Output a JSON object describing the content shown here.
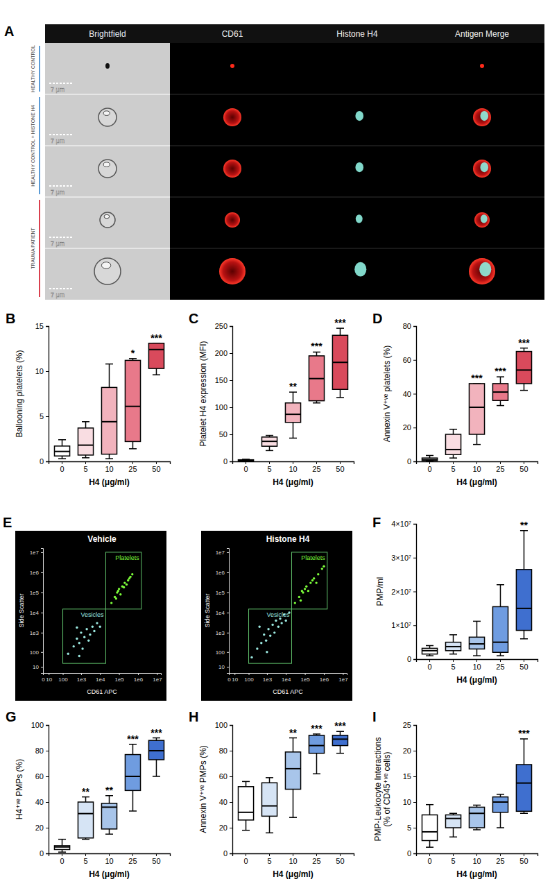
{
  "image_panel": {
    "label": "A",
    "columns": [
      "Brightfield",
      "CD61",
      "Histone H4",
      "Antigen Merge"
    ],
    "groups": [
      {
        "label": "HEALTHY CONTROL",
        "color": "#5b9bd5",
        "scale_bars": [
          "7 μm"
        ]
      },
      {
        "label": "HEALTHY CONTROL + HISTONE H4",
        "color": "#5b9bd5",
        "scale_bars": [
          "7 μm",
          "7 μm"
        ]
      },
      {
        "label": "TRAUMA PATIENT",
        "color": "#d9404e",
        "scale_bars": [
          "7 μm",
          "7 μm"
        ]
      }
    ]
  },
  "chart_data": [
    {
      "type": "box",
      "panel": "B",
      "x_label": "H4 (μg/ml)",
      "y_label": "Ballooning platelets (%)",
      "categories": [
        0,
        5,
        10,
        25,
        50
      ],
      "ylim": [
        0,
        15
      ],
      "yticks": [
        0,
        5,
        10,
        15
      ],
      "min": [
        0.3,
        0.4,
        0.3,
        1.4,
        9.6
      ],
      "q1": [
        0.6,
        0.7,
        0.8,
        2.2,
        10.3
      ],
      "median": [
        1.1,
        1.8,
        4.4,
        6.1,
        12.4
      ],
      "q3": [
        1.7,
        3.7,
        8.2,
        11.2,
        13.1
      ],
      "max": [
        2.4,
        4.4,
        10.8,
        11.4,
        13.1
      ],
      "significance": [
        null,
        null,
        null,
        "*",
        "***"
      ],
      "colors": [
        "#ffffff",
        "#f9dde2",
        "#f2b3bd",
        "#e8798a",
        "#d94a5c"
      ]
    },
    {
      "type": "box",
      "panel": "C",
      "x_label": "H4 (μg/ml)",
      "y_label": "Platelet H4 expression (MFI)",
      "categories": [
        0,
        5,
        10,
        25,
        50
      ],
      "ylim": [
        0,
        250
      ],
      "yticks": [
        0,
        50,
        100,
        150,
        200,
        250
      ],
      "min": [
        0,
        20,
        43,
        108,
        118
      ],
      "q1": [
        1,
        28,
        72,
        112,
        133
      ],
      "median": [
        2,
        37,
        87,
        153,
        183
      ],
      "q3": [
        3,
        45,
        108,
        195,
        233
      ],
      "max": [
        4,
        48,
        128,
        202,
        246
      ],
      "significance": [
        null,
        null,
        "**",
        "***",
        "***"
      ],
      "colors": [
        "#ffffff",
        "#f9dde2",
        "#f2b3bd",
        "#e8798a",
        "#d94a5c"
      ]
    },
    {
      "type": "box",
      "panel": "D",
      "x_label": "H4 (μg/ml)",
      "y_label": "Annexin V⁺ᵛᵉ platelets (%)",
      "categories": [
        0,
        5,
        10,
        25,
        50
      ],
      "ylim": [
        0,
        80
      ],
      "yticks": [
        0,
        20,
        40,
        60,
        80
      ],
      "min": [
        0,
        2,
        10,
        33,
        42
      ],
      "q1": [
        0.5,
        4,
        16,
        36,
        46
      ],
      "median": [
        1,
        7,
        32,
        41,
        54
      ],
      "q3": [
        2,
        16,
        46,
        46,
        65
      ],
      "max": [
        3.5,
        19,
        46,
        50,
        67
      ],
      "significance": [
        null,
        null,
        "***",
        "***",
        "***"
      ],
      "colors": [
        "#ffffff",
        "#f9dde2",
        "#f2b3bd",
        "#e8798a",
        "#d94a5c"
      ]
    },
    {
      "type": "scatter",
      "panel": "E",
      "title": "Vehicle",
      "x_label": "CD61 APC",
      "y_label": "Side Scatter",
      "log": true,
      "xlim": [
        0,
        16000000
      ],
      "ylim": [
        0,
        16000000
      ],
      "xticks": [
        0,
        10,
        100,
        {
          "value": 1000,
          "label": "1e3"
        },
        {
          "value": 10000,
          "label": "1e4"
        },
        {
          "value": 100000,
          "label": "1e5"
        },
        {
          "value": 1000000,
          "label": "1e6"
        },
        {
          "value": 10000000,
          "label": "1e7"
        }
      ],
      "yticks": [
        10,
        100,
        {
          "value": 1000,
          "label": "1e3"
        },
        {
          "value": 10000,
          "label": "1e4"
        },
        {
          "value": 100000,
          "label": "1e5"
        },
        {
          "value": 1000000,
          "label": "1e6"
        },
        {
          "value": 10000000,
          "label": "1e7"
        }
      ],
      "series": [
        {
          "name": "Platelets",
          "color": "#7cfc3a",
          "gate_x": [
            20000,
            1500000
          ],
          "gate_y": [
            15000,
            10000000
          ],
          "x": [
            40000,
            60000,
            80000,
            100000,
            120000,
            150000,
            200000,
            250000,
            300000,
            400000,
            500000,
            70000,
            90000,
            180000,
            350000
          ],
          "y": [
            30000,
            60000,
            100000,
            150000,
            80000,
            200000,
            300000,
            250000,
            400000,
            600000,
            800000,
            50000,
            120000,
            180000,
            500000
          ]
        },
        {
          "name": "Vesicles",
          "color": "#9be8e0",
          "gate_x": [
            100,
            20000
          ],
          "gate_y": [
            20,
            15000
          ],
          "x": [
            200,
            400,
            600,
            800,
            1000,
            1500,
            2000,
            3000,
            4000,
            5000,
            7000,
            10000,
            1200,
            2500,
            800,
            600
          ],
          "y": [
            80,
            200,
            500,
            300,
            1000,
            600,
            1500,
            800,
            2000,
            1200,
            3000,
            2000,
            150,
            400,
            60,
            1800
          ]
        }
      ]
    },
    {
      "type": "scatter",
      "title": "Histone H4",
      "x_label": "CD61 APC",
      "y_label": "Side Scatter",
      "log": true,
      "xlim": [
        0,
        16000000
      ],
      "ylim": [
        0,
        16000000
      ],
      "xticks": [
        0,
        10,
        100,
        {
          "value": 1000,
          "label": "1e3"
        },
        {
          "value": 10000,
          "label": "1e4"
        },
        {
          "value": 100000,
          "label": "1e5"
        },
        {
          "value": 1000000,
          "label": "1e6"
        },
        {
          "value": 10000000,
          "label": "1e7"
        }
      ],
      "yticks": [
        10,
        100,
        {
          "value": 1000,
          "label": "1e3"
        },
        {
          "value": 10000,
          "label": "1e4"
        },
        {
          "value": 100000,
          "label": "1e5"
        },
        {
          "value": 1000000,
          "label": "1e6"
        },
        {
          "value": 10000000,
          "label": "1e7"
        }
      ],
      "series": [
        {
          "name": "Platelets",
          "color": "#7cfc3a",
          "gate_x": [
            20000,
            1500000
          ],
          "gate_y": [
            15000,
            10000000
          ],
          "x": [
            30000,
            50000,
            60000,
            70000,
            80000,
            100000,
            120000,
            150000,
            200000,
            250000,
            300000,
            400000,
            500000,
            800000,
            1000000
          ],
          "y": [
            30000,
            60000,
            40000,
            120000,
            100000,
            150000,
            200000,
            120000,
            300000,
            400000,
            500000,
            300000,
            800000,
            1500000,
            2000000
          ]
        },
        {
          "name": "Vesicles",
          "color": "#9be8e0",
          "gate_x": [
            100,
            20000
          ],
          "gate_y": [
            20,
            15000
          ],
          "x": [
            150,
            300,
            500,
            700,
            900,
            1200,
            1500,
            2000,
            2500,
            3000,
            4000,
            5000,
            6000,
            8000,
            10000,
            15000,
            400,
            1000
          ],
          "y": [
            50,
            150,
            300,
            800,
            400,
            1500,
            700,
            2500,
            1000,
            4000,
            2000,
            5000,
            3000,
            8000,
            4000,
            10000,
            2000,
            100
          ]
        }
      ]
    },
    {
      "type": "box",
      "panel": "F",
      "x_label": "H4 (μg/ml)",
      "y_label": "PMP/ml",
      "categories": [
        0,
        5,
        10,
        25,
        50
      ],
      "ylim": [
        0,
        40000000
      ],
      "yticks": [
        0,
        {
          "value": 10000000,
          "label": "1×10⁷"
        },
        {
          "value": 20000000,
          "label": "2×10⁷"
        },
        {
          "value": 30000000,
          "label": "3×10⁷"
        },
        {
          "value": 40000000,
          "label": "4×10⁷"
        }
      ],
      "min": [
        1000000,
        1500000,
        1000000,
        1000000,
        6000000
      ],
      "q1": [
        1500000,
        2500000,
        3000000,
        2000000,
        8500000
      ],
      "median": [
        2500000,
        3700000,
        4500000,
        5000000,
        15000000
      ],
      "q3": [
        3200000,
        5000000,
        6500000,
        15500000,
        26500000
      ],
      "max": [
        4000000,
        7200000,
        11200000,
        22000000,
        38000000
      ],
      "significance": [
        null,
        null,
        null,
        null,
        "**"
      ],
      "colors": [
        "#ffffff",
        "#d6e4f5",
        "#a8c5ea",
        "#6f9ce0",
        "#3f6fcf"
      ]
    },
    {
      "type": "box",
      "panel": "G",
      "x_label": "H4 (μg/ml)",
      "y_label": "H4⁺ᵛᵉ PMPs (%)",
      "categories": [
        0,
        5,
        10,
        25,
        50
      ],
      "ylim": [
        0,
        100
      ],
      "yticks": [
        0,
        20,
        40,
        60,
        80,
        100
      ],
      "min": [
        1,
        11,
        15,
        33,
        60
      ],
      "q1": [
        3,
        12,
        19,
        49,
        73
      ],
      "median": [
        5,
        31,
        36,
        60,
        80
      ],
      "q3": [
        6,
        40,
        39,
        77,
        88
      ],
      "max": [
        11,
        44,
        45,
        85,
        90
      ],
      "significance": [
        null,
        "**",
        "**",
        "***",
        "***"
      ],
      "colors": [
        "#ffffff",
        "#d6e4f5",
        "#a8c5ea",
        "#6f9ce0",
        "#3f6fcf"
      ]
    },
    {
      "type": "box",
      "panel": "H",
      "x_label": "H4 (μg/ml)",
      "y_label": "Annexin V⁺ᵛᵉ PMPs (%)",
      "categories": [
        0,
        5,
        10,
        25,
        50
      ],
      "ylim": [
        0,
        100
      ],
      "yticks": [
        0,
        20,
        40,
        60,
        80,
        100
      ],
      "min": [
        18,
        16,
        28,
        62,
        78
      ],
      "q1": [
        26,
        29,
        50,
        78,
        84
      ],
      "median": [
        32,
        37,
        66,
        84,
        89
      ],
      "q3": [
        52,
        55,
        79,
        92,
        92
      ],
      "max": [
        56,
        59,
        90,
        93,
        95
      ],
      "significance": [
        null,
        null,
        "**",
        "***",
        "***"
      ],
      "colors": [
        "#ffffff",
        "#d6e4f5",
        "#a8c5ea",
        "#6f9ce0",
        "#3f6fcf"
      ]
    },
    {
      "type": "box",
      "panel": "I",
      "x_label": "H4 (μg/ml)",
      "y_label": [
        "PMP-Leukocyte Interactions",
        "(% of CD45⁺ᵛᵉ cells)"
      ],
      "categories": [
        0,
        5,
        10,
        25,
        50
      ],
      "ylim": [
        0,
        25
      ],
      "yticks": [
        0,
        5,
        10,
        15,
        20,
        25
      ],
      "min": [
        1.2,
        3.2,
        4.6,
        5,
        7.8
      ],
      "q1": [
        2.5,
        5,
        5,
        8,
        8.2
      ],
      "median": [
        4.2,
        6.8,
        7.8,
        10,
        13.7
      ],
      "q3": [
        7.5,
        7.5,
        9,
        11,
        17.3
      ],
      "max": [
        9.5,
        7.8,
        9.4,
        11.5,
        22.3
      ],
      "significance": [
        null,
        null,
        null,
        null,
        "***"
      ],
      "colors": [
        "#ffffff",
        "#d6e4f5",
        "#a8c5ea",
        "#6f9ce0",
        "#3f6fcf"
      ]
    }
  ]
}
